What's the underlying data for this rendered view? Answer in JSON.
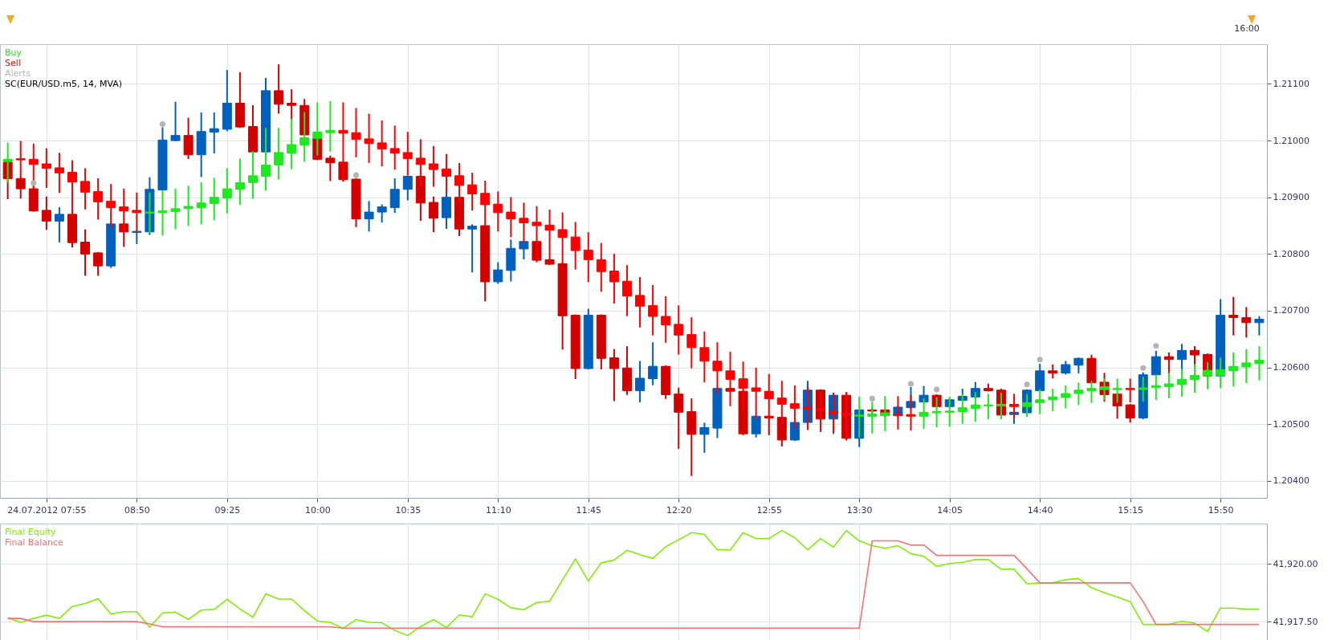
{
  "chart_data": [
    {
      "type": "candlestick",
      "legend": "top left",
      "grid": true,
      "annotations": [
        "SC(EUR/USD.m5, 14, MVA)",
        "16:00"
      ],
      "categories": [
        null,
        null,
        null,
        "24.07.2012 07:55",
        null,
        null,
        null,
        null,
        null,
        null,
        "08:50",
        null,
        null,
        null,
        null,
        null,
        null,
        "09:25",
        null,
        null,
        null,
        null,
        null,
        null,
        "10:00",
        null,
        null,
        null,
        null,
        null,
        null,
        "10:35",
        null,
        null,
        null,
        null,
        null,
        null,
        "11:10",
        null,
        null,
        null,
        null,
        null,
        null,
        "11:45",
        null,
        null,
        null,
        null,
        null,
        null,
        "12:20",
        null,
        null,
        null,
        null,
        null,
        null,
        "12:55",
        null,
        null,
        null,
        null,
        null,
        null,
        "13:30",
        null,
        null,
        null,
        null,
        null,
        null,
        "14:05",
        null,
        null,
        null,
        null,
        null,
        null,
        "14:40",
        null,
        null,
        null,
        null,
        null,
        null,
        "15:15",
        null,
        null,
        null,
        null,
        null,
        null,
        "15:50",
        null,
        null,
        null
      ],
      "ylim": [
        1.2037,
        1.2117
      ],
      "yticks": [
        {
          "value": 1.204,
          "label": "1.20400"
        },
        {
          "value": 1.205,
          "label": "1.20500"
        },
        {
          "value": 1.206,
          "label": "1.20600"
        },
        {
          "value": 1.207,
          "label": "1.20700"
        },
        {
          "value": 1.208,
          "label": "1.20800"
        },
        {
          "value": 1.209,
          "label": "1.20900"
        },
        {
          "value": 1.21,
          "label": "1.21000"
        },
        {
          "value": 1.211,
          "label": "1.21100"
        }
      ],
      "series": [
        {
          "colors": [
            "#d40000",
            "#d40000",
            "#d40000",
            "#d40000",
            "#0060be",
            "#d40000",
            "#d40000",
            "#d40000",
            "#0060be",
            "#d40000",
            "#0060be",
            "#0060be",
            "#0060be",
            "#0060be",
            "#d40000",
            "#0060be",
            "#0060be",
            "#0060be",
            "#d40000",
            "#d40000",
            "#0060be",
            "#d40000",
            "#d40000",
            "#d40000",
            "#d40000",
            "#d40000",
            "#d40000",
            "#d40000",
            "#0060be",
            "#0060be",
            "#0060be",
            "#0060be",
            "#d40000",
            "#d40000",
            "#0060be",
            "#d40000",
            "#0060be",
            "#d40000",
            "#0060be",
            "#0060be",
            "#0060be",
            "#d40000",
            "#d40000",
            "#d40000",
            "#d40000",
            "#0060be",
            "#d40000",
            "#d40000",
            "#d40000",
            "#0060be",
            "#0060be",
            "#d40000",
            "#d40000",
            "#d40000",
            "#0060be",
            "#0060be",
            "#d40000",
            "#d40000",
            "#0060be",
            "#d40000",
            "#d40000",
            "#0060be",
            "#0060be",
            "#d40000",
            "#0060be",
            "#d40000",
            "#0060be",
            "#d40000",
            "#d40000",
            "#0060be",
            "#0060be",
            "#0060be",
            "#d40000",
            "#0060be",
            "#0060be",
            "#0060be",
            "#d40000",
            "#d40000",
            "#0060be",
            "#0060be",
            "#0060be",
            "#d40000",
            "#0060be",
            "#0060be",
            "#d40000",
            "#d40000",
            "#d40000",
            "#d40000",
            "#0060be",
            "#0060be",
            "#d40000",
            "#0060be",
            "#d40000",
            "#d40000",
            "#0060be",
            "#d40000",
            "#d40000",
            "#0060be"
          ],
          "ohlc": [
            [
              1.20962,
              1.20964,
              1.20898,
              1.20933
            ],
            [
              1.20933,
              1.20934,
              1.20899,
              1.20915
            ],
            [
              1.20915,
              1.20918,
              1.20876,
              1.20876
            ],
            [
              1.20877,
              1.209,
              1.20844,
              1.20858
            ],
            [
              1.20858,
              1.20881,
              1.20822,
              1.2087
            ],
            [
              1.2087,
              1.2087,
              1.20813,
              1.2082
            ],
            [
              1.20821,
              1.20842,
              1.20763,
              1.208
            ],
            [
              1.20802,
              1.20802,
              1.20763,
              1.20779
            ],
            [
              1.20779,
              1.20853,
              1.20777,
              1.20853
            ],
            [
              1.20853,
              1.20853,
              1.20814,
              1.20839
            ],
            [
              1.20838,
              1.2084,
              1.20819,
              1.2084
            ],
            [
              1.20839,
              1.20934,
              1.20835,
              1.20914
            ],
            [
              1.20913,
              1.21022,
              1.20913,
              1.21001
            ],
            [
              1.21,
              1.21067,
              1.21,
              1.21009
            ],
            [
              1.21009,
              1.21039,
              1.20969,
              1.20975
            ],
            [
              1.20975,
              1.21048,
              1.20937,
              1.21016
            ],
            [
              1.21015,
              1.21048,
              1.20979,
              1.21021
            ],
            [
              1.2102,
              1.21123,
              1.21018,
              1.21066
            ],
            [
              1.21066,
              1.21119,
              1.21024,
              1.21024
            ],
            [
              1.21025,
              1.21061,
              1.2098,
              1.2098
            ],
            [
              1.2098,
              1.21109,
              1.2098,
              1.21088
            ],
            [
              1.21088,
              1.21133,
              1.21049,
              1.21064
            ],
            [
              1.21066,
              1.21089,
              1.21037,
              1.21062
            ],
            [
              1.21062,
              1.21072,
              1.2101,
              1.2101
            ],
            [
              1.21004,
              1.21004,
              1.20967,
              1.20967
            ],
            [
              1.20969,
              1.20972,
              1.2093,
              1.20961
            ],
            [
              1.20962,
              1.20962,
              1.20929,
              1.20931
            ],
            [
              1.20932,
              1.20932,
              1.20849,
              1.20862
            ],
            [
              1.20862,
              1.20892,
              1.20841,
              1.20874
            ],
            [
              1.20874,
              1.20886,
              1.20857,
              1.20883
            ],
            [
              1.20882,
              1.20932,
              1.20874,
              1.20914
            ],
            [
              1.20914,
              1.20937,
              1.20896,
              1.20937
            ],
            [
              1.20937,
              1.20937,
              1.2086,
              1.2089
            ],
            [
              1.20891,
              1.209,
              1.2084,
              1.20863
            ],
            [
              1.20864,
              1.20913,
              1.20846,
              1.209
            ],
            [
              1.209,
              1.209,
              1.20833,
              1.20844
            ],
            [
              1.20844,
              1.20851,
              1.20769,
              1.20849
            ],
            [
              1.2085,
              1.2085,
              1.20718,
              1.20751
            ],
            [
              1.20751,
              1.20784,
              1.20749,
              1.20772
            ],
            [
              1.20771,
              1.20824,
              1.20753,
              1.2081
            ],
            [
              1.20809,
              1.20822,
              1.20792,
              1.20822
            ],
            [
              1.20822,
              1.20822,
              1.20787,
              1.20789
            ],
            [
              1.2079,
              1.2079,
              1.20782,
              1.20782
            ],
            [
              1.20783,
              1.20783,
              1.20633,
              1.20691
            ],
            [
              1.20692,
              1.20692,
              1.20581,
              1.20598
            ],
            [
              1.20598,
              1.20702,
              1.20598,
              1.20692
            ],
            [
              1.20692,
              1.20692,
              1.20598,
              1.20616
            ],
            [
              1.20617,
              1.20631,
              1.20542,
              1.20598
            ],
            [
              1.20599,
              1.20636,
              1.20553,
              1.20559
            ],
            [
              1.20559,
              1.2061,
              1.2054,
              1.20581
            ],
            [
              1.2058,
              1.20643,
              1.2057,
              1.20602
            ],
            [
              1.20602,
              1.20602,
              1.20546,
              1.20552
            ],
            [
              1.20553,
              1.20563,
              1.20458,
              1.20521
            ],
            [
              1.20522,
              1.20544,
              1.2041,
              1.20482
            ],
            [
              1.20482,
              1.20501,
              1.20451,
              1.20494
            ],
            [
              1.20493,
              1.20563,
              1.20477,
              1.20563
            ],
            [
              1.20563,
              1.20563,
              1.20558,
              1.20558
            ],
            [
              1.20558,
              1.20558,
              1.20482,
              1.20483
            ],
            [
              1.20483,
              1.20514,
              1.20478,
              1.20514
            ],
            [
              1.20514,
              1.20514,
              1.20482,
              1.20511
            ],
            [
              1.20512,
              1.20512,
              1.20462,
              1.20472
            ],
            [
              1.20472,
              1.20503,
              1.20472,
              1.20503
            ],
            [
              1.20503,
              1.20575,
              1.20503,
              1.2056
            ],
            [
              1.2056,
              1.2056,
              1.20488,
              1.20509
            ],
            [
              1.20509,
              1.20554,
              1.20484,
              1.20551
            ],
            [
              1.20551,
              1.20555,
              1.20473,
              1.20475
            ],
            [
              1.20475,
              1.20525,
              1.20461,
              1.20525
            ],
            [
              1.20525,
              1.20528,
              1.2052,
              1.20523
            ],
            [
              1.20525,
              1.20525,
              1.20514,
              1.20515
            ],
            [
              1.20515,
              1.2053,
              1.20514,
              1.2053
            ],
            [
              1.20529,
              1.20564,
              1.20529,
              1.2054
            ],
            [
              1.20539,
              1.20566,
              1.20539,
              1.20551
            ],
            [
              1.20551,
              1.20551,
              1.20531,
              1.20531
            ],
            [
              1.20531,
              1.20543,
              1.20531,
              1.20543
            ],
            [
              1.20542,
              1.20561,
              1.20542,
              1.20549
            ],
            [
              1.20548,
              1.20573,
              1.20548,
              1.20563
            ],
            [
              1.20563,
              1.2057,
              1.20559,
              1.20559
            ],
            [
              1.2056,
              1.20561,
              1.20516,
              1.20516
            ],
            [
              1.20517,
              1.20521,
              1.20502,
              1.20521
            ],
            [
              1.2052,
              1.2056,
              1.2052,
              1.2056
            ],
            [
              1.20559,
              1.20605,
              1.20559,
              1.20594
            ],
            [
              1.20594,
              1.20604,
              1.20582,
              1.2059
            ],
            [
              1.2059,
              1.2061,
              1.20589,
              1.20605
            ],
            [
              1.20604,
              1.20616,
              1.20591,
              1.20616
            ],
            [
              1.20616,
              1.20621,
              1.20573,
              1.20573
            ],
            [
              1.20574,
              1.20589,
              1.20541,
              1.20552
            ],
            [
              1.20553,
              1.20553,
              1.20511,
              1.20532
            ],
            [
              1.20534,
              1.20534,
              1.20504,
              1.20511
            ],
            [
              1.20511,
              1.2059,
              1.2051,
              1.20587
            ],
            [
              1.20587,
              1.20628,
              1.20587,
              1.20619
            ],
            [
              1.20619,
              1.20625,
              1.2059,
              1.20614
            ],
            [
              1.20614,
              1.2064,
              1.20594,
              1.2063
            ],
            [
              1.2063,
              1.20636,
              1.20604,
              1.20622
            ],
            [
              1.20623,
              1.20623,
              1.20583,
              1.20585
            ],
            [
              1.20585,
              1.20719,
              1.20585,
              1.20692
            ],
            [
              1.20692,
              1.20723,
              1.20658,
              1.20688
            ],
            [
              1.20688,
              1.20705,
              1.20654,
              1.20679
            ],
            [
              1.20679,
              1.20689,
              1.20658,
              1.20685
            ]
          ]
        },
        {
          "name": "Buy",
          "color": "#1ee81e",
          "ohlc": [
            [
              1.20964,
              1.20995,
              1.20927,
              1.20967
            ],
            null,
            null,
            null,
            null,
            null,
            null,
            null,
            null,
            null,
            null,
            [
              1.20872,
              1.20907,
              1.20838,
              1.20874
            ],
            [
              1.20873,
              1.2091,
              1.20834,
              1.20876
            ],
            [
              1.20875,
              1.20914,
              1.20845,
              1.2088
            ],
            [
              1.2088,
              1.20919,
              1.20851,
              1.20884
            ],
            [
              1.20882,
              1.20925,
              1.20854,
              1.2089
            ],
            [
              1.20889,
              1.20933,
              1.20861,
              1.209
            ],
            [
              1.20899,
              1.2095,
              1.20873,
              1.20915
            ],
            [
              1.20914,
              1.20967,
              1.20888,
              1.20926
            ],
            [
              1.20926,
              1.2098,
              1.20899,
              1.20938
            ],
            [
              1.20937,
              1.21021,
              1.20913,
              1.20957
            ],
            [
              1.20957,
              1.21021,
              1.20933,
              1.20979
            ],
            [
              1.20978,
              1.21037,
              1.20951,
              1.20993
            ],
            [
              1.20992,
              1.21049,
              1.20964,
              1.21005
            ],
            [
              1.21004,
              1.21066,
              1.20975,
              1.21015
            ],
            [
              1.21014,
              1.21068,
              1.20982,
              1.21018
            ],
            null,
            null,
            null,
            null,
            null,
            null,
            null,
            null,
            null,
            null,
            null,
            null,
            null,
            null,
            null,
            null,
            null,
            null,
            null,
            null,
            null,
            null,
            null,
            null,
            null,
            null,
            null,
            null,
            null,
            null,
            null,
            null,
            null,
            null,
            null,
            null,
            null,
            null,
            null,
            null,
            [
              1.20514,
              1.20547,
              1.20478,
              1.20516
            ],
            [
              1.20514,
              1.20538,
              1.20485,
              1.20518
            ],
            [
              1.20515,
              1.20548,
              1.20489,
              1.2052
            ],
            null,
            null,
            [
              1.20514,
              1.20544,
              1.20493,
              1.20521
            ],
            [
              1.2052,
              1.20546,
              1.20496,
              1.20522
            ],
            [
              1.20521,
              1.20547,
              1.20497,
              1.20523
            ],
            [
              1.20522,
              1.20552,
              1.20502,
              1.20529
            ],
            [
              1.20528,
              1.20555,
              1.20506,
              1.20534
            ],
            [
              1.20532,
              1.20552,
              1.2051,
              1.20534
            ],
            [
              1.20532,
              1.20554,
              1.2051,
              1.20535
            ],
            null,
            [
              1.20531,
              1.20552,
              1.20514,
              1.20538
            ],
            [
              1.20538,
              1.2056,
              1.20519,
              1.20543
            ],
            [
              1.20543,
              1.20561,
              1.20524,
              1.20548
            ],
            [
              1.20547,
              1.20567,
              1.20529,
              1.20554
            ],
            [
              1.20554,
              1.20572,
              1.20535,
              1.2056
            ],
            [
              1.20559,
              1.20575,
              1.20539,
              1.20563
            ],
            [
              1.20561,
              1.20579,
              1.20544,
              1.20566
            ],
            [
              1.20561,
              1.20579,
              1.20539,
              1.20563
            ],
            null,
            [
              1.20561,
              1.20582,
              1.20541,
              1.20564
            ],
            [
              1.20565,
              1.20586,
              1.20544,
              1.20568
            ],
            [
              1.20566,
              1.20589,
              1.20547,
              1.20571
            ],
            [
              1.2057,
              1.20596,
              1.2055,
              1.20579
            ],
            [
              1.20579,
              1.20604,
              1.20557,
              1.20586
            ],
            [
              1.20585,
              1.20608,
              1.20563,
              1.20595
            ],
            [
              1.20586,
              1.20616,
              1.20565,
              1.20596
            ],
            [
              1.20594,
              1.20625,
              1.20568,
              1.20602
            ],
            [
              1.20601,
              1.20631,
              1.20574,
              1.20608
            ],
            [
              1.20607,
              1.20636,
              1.20579,
              1.20613
            ]
          ]
        },
        {
          "name": "Sell",
          "color": "#ff0000",
          "ohlc": [
            null,
            [
              1.20968,
              1.20998,
              1.20934,
              1.20966
            ],
            [
              1.20967,
              1.20993,
              1.20915,
              1.20958
            ],
            [
              1.20959,
              1.20985,
              1.20918,
              1.20951
            ],
            [
              1.20952,
              1.20977,
              1.20909,
              1.20943
            ],
            [
              1.20944,
              1.20964,
              1.2087,
              1.20927
            ],
            [
              1.20928,
              1.2095,
              1.2088,
              1.20909
            ],
            [
              1.2091,
              1.20932,
              1.20862,
              1.20892
            ],
            [
              1.20893,
              1.20922,
              1.20849,
              1.20882
            ],
            [
              1.20883,
              1.20914,
              1.20841,
              1.20876
            ],
            [
              1.20877,
              1.20907,
              1.20839,
              1.20873
            ],
            null,
            null,
            null,
            null,
            null,
            null,
            null,
            null,
            null,
            null,
            null,
            null,
            null,
            null,
            null,
            [
              1.21018,
              1.21066,
              1.20931,
              1.21013
            ],
            [
              1.21014,
              1.21056,
              1.20972,
              1.21002
            ],
            [
              1.21003,
              1.21046,
              1.20962,
              1.20995
            ],
            [
              1.20996,
              1.21034,
              1.20956,
              1.20985
            ],
            [
              1.20986,
              1.21025,
              1.2095,
              1.20978
            ],
            [
              1.20979,
              1.21014,
              1.2094,
              1.20968
            ],
            [
              1.20969,
              1.21001,
              1.20921,
              1.20958
            ],
            [
              1.20959,
              1.20989,
              1.2092,
              1.20949
            ],
            [
              1.2095,
              1.20975,
              1.2091,
              1.20937
            ],
            [
              1.20938,
              1.20959,
              1.20893,
              1.20921
            ],
            [
              1.20922,
              1.20942,
              1.20878,
              1.20906
            ],
            [
              1.20907,
              1.20928,
              1.2085,
              1.20887
            ],
            [
              1.20888,
              1.20909,
              1.20841,
              1.20873
            ],
            [
              1.20874,
              1.20899,
              1.20831,
              1.20862
            ],
            [
              1.20863,
              1.20889,
              1.20822,
              1.20855
            ],
            [
              1.20856,
              1.20883,
              1.2079,
              1.2085
            ],
            [
              1.20851,
              1.20877,
              1.2079,
              1.20842
            ],
            [
              1.20843,
              1.20872,
              1.20784,
              1.20829
            ],
            [
              1.2083,
              1.20855,
              1.20774,
              1.20806
            ],
            [
              1.20807,
              1.20837,
              1.20752,
              1.2079
            ],
            [
              1.2079,
              1.20818,
              1.20735,
              1.20769
            ],
            [
              1.2077,
              1.20799,
              1.20714,
              1.20751
            ],
            [
              1.20752,
              1.20779,
              1.20692,
              1.20726
            ],
            [
              1.20727,
              1.20758,
              1.20672,
              1.20708
            ],
            [
              1.20709,
              1.20744,
              1.20658,
              1.2069
            ],
            [
              1.2069,
              1.20724,
              1.20645,
              1.20675
            ],
            [
              1.20676,
              1.20708,
              1.20624,
              1.20657
            ],
            [
              1.20658,
              1.20687,
              1.206,
              1.20635
            ],
            [
              1.20635,
              1.20662,
              1.20575,
              1.20611
            ],
            [
              1.20611,
              1.20643,
              1.20555,
              1.20594
            ],
            [
              1.20594,
              1.20626,
              1.20533,
              1.20579
            ],
            [
              1.2058,
              1.20609,
              1.20525,
              1.20563
            ],
            [
              1.20564,
              1.20598,
              1.20511,
              1.20558
            ],
            [
              1.20558,
              1.20587,
              1.20511,
              1.20545
            ],
            [
              1.20546,
              1.20575,
              1.205,
              1.20535
            ],
            [
              1.20536,
              1.20567,
              1.20495,
              1.20528
            ],
            [
              1.2053,
              1.20566,
              1.20491,
              1.20527
            ],
            [
              1.20527,
              1.20555,
              1.20488,
              1.20523
            ],
            [
              1.20523,
              1.20554,
              1.20487,
              1.20519
            ],
            [
              1.2052,
              1.20555,
              1.20473,
              1.20515
            ],
            null,
            null,
            null,
            [
              1.20518,
              1.20548,
              1.20492,
              1.20515
            ],
            [
              1.20517,
              1.2055,
              1.2049,
              1.20514
            ],
            null,
            null,
            null,
            null,
            null,
            null,
            null,
            [
              1.20535,
              1.20552,
              1.20512,
              1.20531
            ],
            null,
            null,
            null,
            null,
            null,
            null,
            null,
            null,
            [
              1.20563,
              1.20579,
              1.2054,
              1.20561
            ],
            null,
            null,
            null,
            null,
            null,
            null,
            null,
            null,
            null,
            null
          ]
        },
        {
          "name": "Alerts",
          "type": "scatter",
          "color": "#b4b4b4",
          "marker": "circle",
          "values": [
            null,
            null,
            1.20925,
            null,
            null,
            null,
            null,
            null,
            null,
            null,
            null,
            null,
            1.21029,
            null,
            null,
            null,
            null,
            null,
            null,
            null,
            null,
            null,
            null,
            null,
            null,
            null,
            null,
            1.20939,
            null,
            null,
            null,
            null,
            null,
            null,
            null,
            null,
            null,
            null,
            null,
            null,
            null,
            null,
            null,
            null,
            null,
            null,
            null,
            null,
            null,
            null,
            null,
            null,
            null,
            null,
            null,
            null,
            null,
            null,
            null,
            null,
            null,
            null,
            null,
            null,
            null,
            null,
            null,
            1.20545,
            null,
            null,
            1.20571,
            null,
            1.20561,
            null,
            null,
            null,
            null,
            null,
            null,
            1.2057,
            1.20614,
            null,
            null,
            null,
            null,
            null,
            null,
            null,
            1.20599,
            1.20638,
            null,
            null,
            null,
            null,
            null,
            null,
            null,
            null
          ]
        }
      ]
    },
    {
      "type": "line",
      "legend": "top left",
      "grid": true,
      "tick_labels": "y",
      "categories": [
        null,
        null,
        null,
        null,
        null,
        null,
        null,
        null,
        null,
        null,
        null,
        null,
        null,
        null,
        null,
        null,
        null,
        null,
        null,
        null,
        null,
        null,
        null,
        null,
        null,
        null,
        null,
        null,
        null,
        null,
        null,
        null,
        null,
        null,
        null,
        null,
        null,
        null,
        null,
        null,
        null,
        null,
        null,
        null,
        null,
        null,
        null,
        null,
        null,
        null,
        null,
        null,
        null,
        null,
        null,
        null,
        null,
        null,
        null,
        null,
        null,
        null,
        null,
        null,
        null,
        null,
        null,
        null,
        null,
        null,
        null,
        null,
        null,
        null,
        null,
        null,
        null,
        null,
        null,
        null,
        null,
        null,
        null,
        null,
        null,
        null,
        null,
        null,
        null,
        null,
        null,
        null,
        null,
        null,
        null,
        null,
        null,
        null
      ],
      "ylim": [
        41916.6,
        41921.75
      ],
      "yticks": [
        {
          "value": 41917.5,
          "label": "41,917.50"
        },
        {
          "value": 41920,
          "label": "41,920.00"
        }
      ],
      "series": [
        {
          "name": "Final Equity",
          "color": "#80f000",
          "values": [
            41917.67,
            41917.47,
            41917.64,
            41917.78,
            41917.64,
            41918.16,
            41918.29,
            41918.5,
            41917.83,
            41917.93,
            41917.93,
            41917.26,
            41917.88,
            41917.91,
            41917.6,
            41918.0,
            41918.03,
            41918.47,
            41918.05,
            41917.69,
            41918.71,
            41918.48,
            41918.48,
            41917.98,
            41917.53,
            41917.47,
            41917.21,
            41917.59,
            41917.47,
            41917.45,
            41917.12,
            41916.9,
            41917.29,
            41917.59,
            41917.24,
            41917.79,
            41917.71,
            41918.71,
            41918.47,
            41918.1,
            41918.02,
            41918.33,
            41918.38,
            41919.31,
            41920.22,
            41919.26,
            41920.05,
            41920.17,
            41920.59,
            41920.4,
            41920.24,
            41920.75,
            41921.05,
            41921.36,
            41921.28,
            41920.61,
            41920.61,
            41921.36,
            41921.1,
            41921.1,
            41921.45,
            41921.14,
            41920.61,
            41921.1,
            41920.73,
            41921.45,
            41921.0,
            41920.79,
            41920.68,
            41920.79,
            41920.45,
            41920.33,
            41919.9,
            41920.02,
            41920.07,
            41920.19,
            41920.19,
            41919.77,
            41919.77,
            41919.14,
            41919.18,
            41919.18,
            41919.32,
            41919.37,
            41918.97,
            41918.76,
            41918.57,
            41918.37,
            41917.38,
            41917.38,
            41917.38,
            41917.52,
            41917.43,
            41917.08,
            41918.09,
            41918.09,
            41918.04,
            41918.04
          ]
        },
        {
          "name": "Final Balance",
          "color": "#ff6e6e",
          "values": [
            41917.64,
            41917.64,
            41917.5,
            41917.5,
            41917.5,
            41917.5,
            41917.5,
            41917.5,
            41917.5,
            41917.5,
            41917.5,
            41917.4,
            41917.28,
            41917.28,
            41917.28,
            41917.28,
            41917.28,
            41917.28,
            41917.28,
            41917.28,
            41917.28,
            41917.28,
            41917.28,
            41917.28,
            41917.28,
            41917.28,
            41917.22,
            41917.22,
            41917.22,
            41917.22,
            41917.22,
            41917.22,
            41917.22,
            41917.22,
            41917.22,
            41917.22,
            41917.22,
            41917.22,
            41917.22,
            41917.22,
            41917.22,
            41917.22,
            41917.22,
            41917.22,
            41917.22,
            41917.22,
            41917.22,
            41917.22,
            41917.22,
            41917.22,
            41917.22,
            41917.22,
            41917.22,
            41917.22,
            41917.22,
            41917.22,
            41917.22,
            41917.22,
            41917.22,
            41917.22,
            41917.22,
            41917.22,
            41917.22,
            41917.22,
            41917.22,
            41917.22,
            41917.22,
            41921.0,
            41921.0,
            41921.0,
            41920.82,
            41920.82,
            41920.37,
            41920.37,
            41920.37,
            41920.37,
            41920.37,
            41920.37,
            41920.37,
            41919.79,
            41919.18,
            41919.18,
            41919.18,
            41919.18,
            41919.18,
            41919.18,
            41919.18,
            41919.18,
            41918.37,
            41917.38,
            41917.38,
            41917.38,
            41917.38,
            41917.38,
            41917.38,
            41917.38,
            41917.38,
            41917.38
          ]
        }
      ]
    }
  ]
}
